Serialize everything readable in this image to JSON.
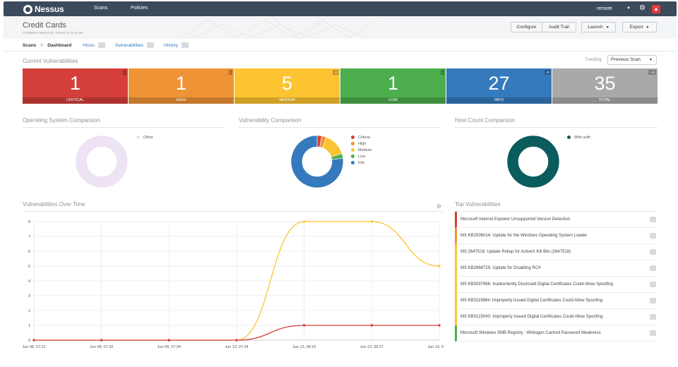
{
  "app": {
    "logo_text": "Nessus",
    "nav": [
      "Scans",
      "Policies"
    ],
    "user": "remote"
  },
  "page": {
    "title": "Credit Cards",
    "subtitle": "CURRENT RESULTS: TODAY AT 8:40 AM",
    "buttons": {
      "configure": "Configure",
      "audit_trail": "Audit Trail",
      "launch": "Launch",
      "export": "Export"
    }
  },
  "breadcrumb": {
    "scans": "Scans",
    "separator": ">",
    "dashboard": "Dashboard",
    "hosts": "Hosts",
    "vulnerabilities": "Vulnerabilities",
    "history": "History"
  },
  "current": {
    "title": "Current Vulnerabilities",
    "trending_label": "Trending:",
    "trending_value": "Previous Scan",
    "tiles": [
      {
        "label": "CRITICAL",
        "value": "1",
        "delta": "-",
        "color": "#d43f3a"
      },
      {
        "label": "HIGH",
        "value": "1",
        "delta": "-",
        "color": "#ee9336"
      },
      {
        "label": "MEDIUM",
        "value": "5",
        "delta": "-3",
        "color": "#fdc431"
      },
      {
        "label": "LOW",
        "value": "1",
        "delta": "-",
        "color": "#4cae4c"
      },
      {
        "label": "INFO",
        "value": "27",
        "delta": "-9",
        "color": "#357abd"
      },
      {
        "label": "TOTAL",
        "value": "35",
        "delta": "-12",
        "color": "#a9a9a9"
      }
    ]
  },
  "os_comparison": {
    "title": "Operating System Comparison",
    "legend": [
      {
        "label": "Other",
        "color": "#ede3f5"
      }
    ],
    "values": [
      1
    ]
  },
  "vuln_comparison": {
    "title": "Vulnerability Comparison",
    "legend": [
      {
        "label": "Critical",
        "color": "#d43f3a"
      },
      {
        "label": "High",
        "color": "#ee9336"
      },
      {
        "label": "Medium",
        "color": "#fdc431"
      },
      {
        "label": "Low",
        "color": "#4cae4c"
      },
      {
        "label": "Info",
        "color": "#357abd"
      }
    ],
    "values": [
      1,
      1,
      5,
      1,
      27
    ]
  },
  "host_count": {
    "title": "Host Count Comparison",
    "legend": [
      {
        "label": "With auth",
        "color": "#0b5c5c"
      }
    ],
    "values": [
      1
    ]
  },
  "over_time": {
    "title": "Vulnerabilities Over Time"
  },
  "chart_data": {
    "type": "line",
    "title": "Vulnerabilities Over Time",
    "x": [
      "Jun 08, 07:31",
      "Jun 08, 07:32",
      "Jun 08, 07:34",
      "Jun 13, 07:34",
      "Jun 13, 08:10",
      "Jun 13, 08:27",
      "Jun 13, 08:40"
    ],
    "series": [
      {
        "color": "#fdc431",
        "values": [
          0,
          0,
          0,
          0,
          8,
          8,
          5
        ]
      },
      {
        "color": "#d43f3a",
        "values": [
          0,
          0,
          0,
          0,
          1,
          1,
          1
        ]
      }
    ],
    "yticks": [
      0,
      1,
      2,
      3,
      4,
      5,
      6,
      7,
      8
    ],
    "ylim": [
      0,
      8
    ],
    "grid": true
  },
  "top_vulns": {
    "title": "Top Vulnerabilities",
    "items": [
      {
        "label": "Microsoft Internet Explorer Unsupported Version Detection",
        "color": "#d43f3a"
      },
      {
        "label": "MS KB2506014: Update for the Windows Operating System Loader",
        "color": "#ee9336"
      },
      {
        "label": "MS 2647518: Update Rollup for ActiveX Kill Bits (2647518)",
        "color": "#fdc431"
      },
      {
        "label": "MS KB2868725: Update for Disabling RC4",
        "color": "#fdc431"
      },
      {
        "label": "MS KB3097966: Inadvertently Disclosed Digital Certificates Could Allow Spoofing",
        "color": "#fdc431"
      },
      {
        "label": "MS KB3119884: Improperly Issued Digital Certificates Could Allow Spoofing",
        "color": "#fdc431"
      },
      {
        "label": "MS KB3123040: Improperly Issued Digital Certificates Could Allow Spoofing",
        "color": "#fdc431"
      },
      {
        "label": "Microsoft Windows SMB Registry : Winlogon Cached Password Weakness",
        "color": "#4cae4c"
      }
    ]
  }
}
